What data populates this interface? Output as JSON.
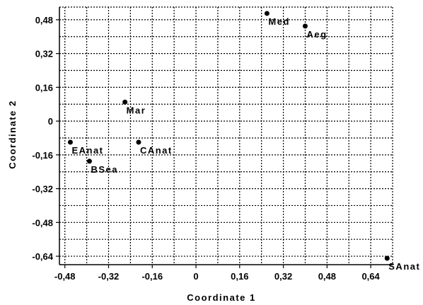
{
  "chart_data": {
    "type": "scatter",
    "title": "",
    "xlabel": "Coordinate 1",
    "ylabel": "Coordinate 2",
    "xlim": [
      -0.5,
      0.72
    ],
    "ylim": [
      -0.68,
      0.54
    ],
    "grid": true,
    "x_ticks": [
      -0.48,
      -0.32,
      -0.16,
      0,
      0.16,
      0.32,
      0.48,
      0.64
    ],
    "x_tick_labels": [
      "-0,48",
      "-0,32",
      "-0,16",
      "0",
      "0,16",
      "0,32",
      "0,48",
      "0,64"
    ],
    "y_ticks": [
      -0.64,
      -0.48,
      -0.32,
      -0.16,
      0,
      0.16,
      0.32,
      0.48
    ],
    "y_tick_labels": [
      "-0,64",
      "-0,48",
      "-0,32",
      "-0,16",
      "0",
      "0,16",
      "0,32",
      "0,48"
    ],
    "points": [
      {
        "label": "Med",
        "x": 0.26,
        "y": 0.51
      },
      {
        "label": "Aeg",
        "x": 0.4,
        "y": 0.45
      },
      {
        "label": "Mar",
        "x": -0.26,
        "y": 0.09
      },
      {
        "label": "EAnat",
        "x": -0.46,
        "y": -0.1
      },
      {
        "label": "CAnat",
        "x": -0.21,
        "y": -0.1
      },
      {
        "label": "BSea",
        "x": -0.39,
        "y": -0.19
      },
      {
        "label": "SAnat",
        "x": 0.7,
        "y": -0.65
      }
    ]
  }
}
